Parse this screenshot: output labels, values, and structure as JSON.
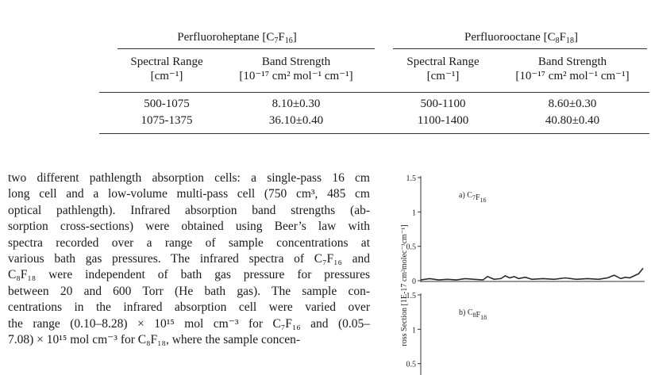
{
  "table": {
    "groups": [
      {
        "name": "Perfluoroheptane",
        "formula": "C7F16"
      },
      {
        "name": "Perfluorooctane",
        "formula": "C8F18"
      }
    ],
    "col_header_range": "Spectral Range",
    "col_header_range_unit": "cm⁻¹",
    "col_header_strength": "Band Strength",
    "col_header_strength_unit": "10⁻¹⁷ cm² mol⁻¹ cm⁻¹",
    "rows": [
      [
        "500-1075",
        "8.10±0.30",
        "500-1100",
        "8.60±0.30"
      ],
      [
        "1075-1375",
        "36.10±0.40",
        "1100-1400",
        "40.80±0.40"
      ]
    ]
  },
  "paragraph": {
    "lines": [
      "two different pathlength absorption cells: a single-pass 16 cm",
      "long cell and a low-volume multi-pass cell (750 cm³, 485 cm",
      "optical pathlength). Infrared absorption band strengths (ab-",
      "sorption cross-sections) were obtained using Beer’s law with",
      "spectra recorded over a range of sample concentrations at",
      "various bath gas pressures. The infrared spectra of C₇F₁₆ and",
      "C₈F₁₈ were independent of bath gas pressure for pressures",
      "between 20 and 600 Torr (He bath gas). The sample con-",
      "centrations in the infrared absorption cell were varied over",
      "the range (0.10–8.28) × 10¹⁵ mol cm⁻³ for C₇F₁₆ and (0.05–",
      "7.08) × 10¹⁵ mol cm⁻³ for C₈F₁₈, where the sample concen-"
    ]
  },
  "chart_data": {
    "type": "line",
    "ylabel": "ross Section [1E-17 cm²molec⁻¹cm⁻¹]",
    "panels": [
      {
        "label": "a) C7F16",
        "ylim": [
          0,
          1.5
        ],
        "yticks": [
          "0",
          "0.5",
          "1",
          "1.5"
        ],
        "series": [
          {
            "x": [
              0,
              0.04,
              0.08,
              0.12,
              0.16,
              0.2,
              0.24,
              0.28,
              0.3,
              0.33,
              0.36,
              0.38,
              0.4,
              0.42,
              0.44,
              0.47,
              0.5,
              0.55,
              0.6,
              0.65,
              0.7,
              0.75,
              0.8,
              0.84,
              0.87,
              0.9,
              0.92,
              0.94,
              0.96,
              0.98,
              1.0
            ],
            "y": [
              0.01,
              0.03,
              0.01,
              0.02,
              0.01,
              0.03,
              0.02,
              0.01,
              0.06,
              0.02,
              0.03,
              0.07,
              0.04,
              0.06,
              0.03,
              0.05,
              0.02,
              0.03,
              0.02,
              0.04,
              0.02,
              0.03,
              0.02,
              0.04,
              0.08,
              0.03,
              0.05,
              0.04,
              0.07,
              0.1,
              0.18
            ]
          }
        ]
      },
      {
        "label": "b) C8F18",
        "ylim": [
          0.5,
          1.5
        ],
        "yticks": [
          "0.5",
          "1",
          "1.5"
        ],
        "series": []
      }
    ]
  }
}
